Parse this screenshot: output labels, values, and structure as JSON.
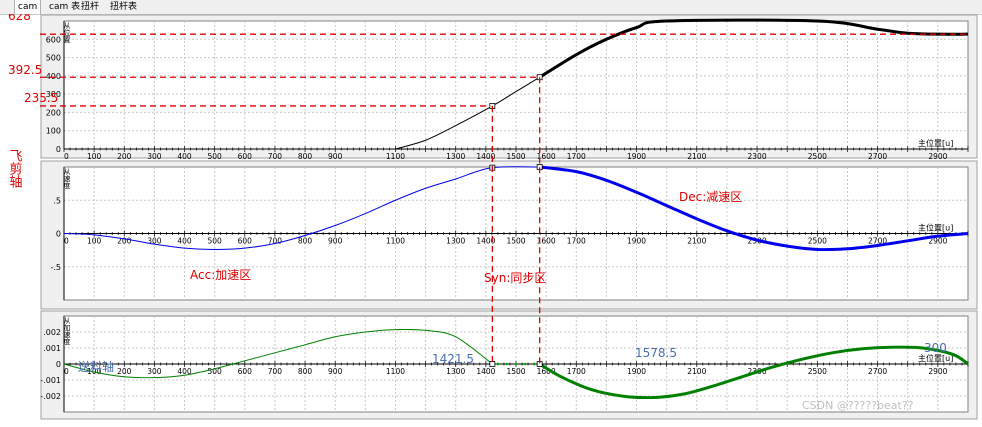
{
  "tabs": [
    {
      "label": "cam",
      "active": true
    },
    {
      "label": "cam 表",
      "active": false
    },
    {
      "label": "扭杆",
      "active": false
    },
    {
      "label": "扭杆表",
      "active": false
    }
  ],
  "colors": {
    "panel_bg": "#f0f0f0",
    "plot_bg": "#ffffff",
    "grid": "#c8c8c8",
    "position_curve": "#000000",
    "velocity_curve": "#0000ee",
    "acceleration_curve": "#008000",
    "annotation": "#e00000",
    "annotation_blue": "#4a6fb5",
    "marker_fill": "#ffffff",
    "green_marker": "#00aa00"
  },
  "annotations": {
    "left_axis_label": "飞剪轴",
    "top_value_628": "628",
    "top_value_392_5": "392.5",
    "top_value_235_5": "235.5",
    "acc_label": "Acc:加速区",
    "syn_label": "Syn:同步区",
    "dec_label": "Dec:减速区",
    "x_1421_5": "1421.5",
    "x_1578_5": "1578.5",
    "x_300": "300",
    "feed_axis": "送料轴",
    "watermark": "CSDN @?????beat??"
  },
  "chart_data": [
    {
      "type": "line",
      "name": "position",
      "ylabel": "从位置",
      "xlabel": "主位置[u]",
      "xlim": [
        0,
        3000
      ],
      "ylim": [
        0,
        700
      ],
      "x_ticks": [
        0,
        100,
        200,
        300,
        400,
        500,
        600,
        700,
        800,
        900,
        1100,
        1300,
        1400,
        1500,
        1600,
        1700,
        1900,
        2100,
        2300,
        2500,
        2700,
        2900
      ],
      "y_ticks": [
        0,
        100,
        200,
        300,
        400,
        500,
        600
      ],
      "series": [
        {
          "style": "thin",
          "points": [
            [
              1100,
              0
            ],
            [
              1200,
              48
            ],
            [
              1300,
              128
            ],
            [
              1421.5,
              235.5
            ],
            [
              1500,
              314
            ],
            [
              1578.5,
              392.5
            ]
          ]
        },
        {
          "style": "thick",
          "points": [
            [
              1578.5,
              392.5
            ],
            [
              1700,
              516
            ],
            [
              1800,
              600
            ],
            [
              1900,
              664
            ],
            [
              2000,
              700
            ],
            [
              2500,
              700
            ],
            [
              2700,
              655
            ],
            [
              2800,
              633
            ],
            [
              2900,
              628
            ],
            [
              3000,
              628
            ]
          ]
        }
      ],
      "markers": [
        [
          1421.5,
          235.5
        ],
        [
          1578.5,
          392.5
        ]
      ],
      "reference_lines": [
        {
          "y": 628,
          "x_end": 3000
        },
        {
          "y": 392.5,
          "x_end": 1578.5
        },
        {
          "y": 235.5,
          "x_end": 1421.5
        }
      ]
    },
    {
      "type": "line",
      "name": "velocity",
      "ylabel": "从速度",
      "xlabel": "主位置[u]",
      "xlim": [
        0,
        3000
      ],
      "ylim": [
        -1.0,
        1.0
      ],
      "x_ticks": [
        0,
        100,
        200,
        300,
        400,
        500,
        600,
        700,
        800,
        900,
        1100,
        1300,
        1400,
        1500,
        1600,
        1700,
        1900,
        2100,
        2300,
        2500,
        2700,
        2900
      ],
      "y_ticks": [
        -0.5,
        0,
        0.5
      ],
      "series": [
        {
          "style": "thin",
          "points": [
            [
              0,
              0
            ],
            [
              100,
              -0.02
            ],
            [
              200,
              -0.08
            ],
            [
              300,
              -0.16
            ],
            [
              400,
              -0.22
            ],
            [
              500,
              -0.24
            ],
            [
              600,
              -0.22
            ],
            [
              700,
              -0.15
            ],
            [
              800,
              -0.03
            ],
            [
              900,
              0.12
            ],
            [
              1000,
              0.3
            ],
            [
              1100,
              0.5
            ],
            [
              1200,
              0.68
            ],
            [
              1300,
              0.82
            ],
            [
              1421.5,
              0.99
            ],
            [
              1578.5,
              1.0
            ]
          ]
        },
        {
          "style": "thick",
          "points": [
            [
              1578.5,
              1.0
            ],
            [
              1700,
              0.93
            ],
            [
              1800,
              0.8
            ],
            [
              1900,
              0.62
            ],
            [
              2000,
              0.42
            ],
            [
              2100,
              0.22
            ],
            [
              2200,
              0.04
            ],
            [
              2300,
              -0.1
            ],
            [
              2400,
              -0.19
            ],
            [
              2500,
              -0.24
            ],
            [
              2600,
              -0.23
            ],
            [
              2700,
              -0.18
            ],
            [
              2800,
              -0.11
            ],
            [
              2900,
              -0.04
            ],
            [
              3000,
              0
            ]
          ]
        }
      ],
      "markers": [
        [
          1421.5,
          0.99
        ],
        [
          1578.5,
          1.0
        ]
      ]
    },
    {
      "type": "line",
      "name": "acceleration",
      "ylabel": "从加速度",
      "xlabel": "主位置[u]",
      "xlim": [
        0,
        3000
      ],
      "ylim": [
        -0.003,
        0.003
      ],
      "x_ticks": [
        0,
        100,
        200,
        300,
        400,
        500,
        600,
        700,
        800,
        900,
        1100,
        1300,
        1400,
        1500,
        1600,
        1700,
        1900,
        2100,
        2300,
        2500,
        2700,
        2900
      ],
      "y_ticks": [
        -0.002,
        -0.001,
        0,
        0.001,
        0.002
      ],
      "series": [
        {
          "style": "thin",
          "points": [
            [
              0,
              0
            ],
            [
              100,
              -0.0005
            ],
            [
              200,
              -0.0008
            ],
            [
              300,
              -0.00085
            ],
            [
              400,
              -0.0007
            ],
            [
              500,
              -0.0003
            ],
            [
              600,
              0.0002
            ],
            [
              700,
              0.0007
            ],
            [
              800,
              0.0012
            ],
            [
              900,
              0.0017
            ],
            [
              1000,
              0.002
            ],
            [
              1100,
              0.00215
            ],
            [
              1200,
              0.0021
            ],
            [
              1300,
              0.0017
            ],
            [
              1421.5,
              0
            ]
          ]
        },
        {
          "style": "thick",
          "points": [
            [
              1578.5,
              0
            ],
            [
              1650,
              -0.0008
            ],
            [
              1750,
              -0.0016
            ],
            [
              1850,
              -0.002
            ],
            [
              1950,
              -0.0021
            ],
            [
              2050,
              -0.0019
            ],
            [
              2150,
              -0.0014
            ],
            [
              2250,
              -0.0008
            ],
            [
              2350,
              -0.0002
            ],
            [
              2450,
              0.0003
            ],
            [
              2550,
              0.0007
            ],
            [
              2650,
              0.00095
            ],
            [
              2750,
              0.00105
            ],
            [
              2850,
              0.001
            ],
            [
              2950,
              0.0006
            ],
            [
              3000,
              0
            ]
          ]
        }
      ],
      "markers": [
        [
          1421.5,
          0
        ],
        [
          1578.5,
          0
        ]
      ]
    }
  ]
}
